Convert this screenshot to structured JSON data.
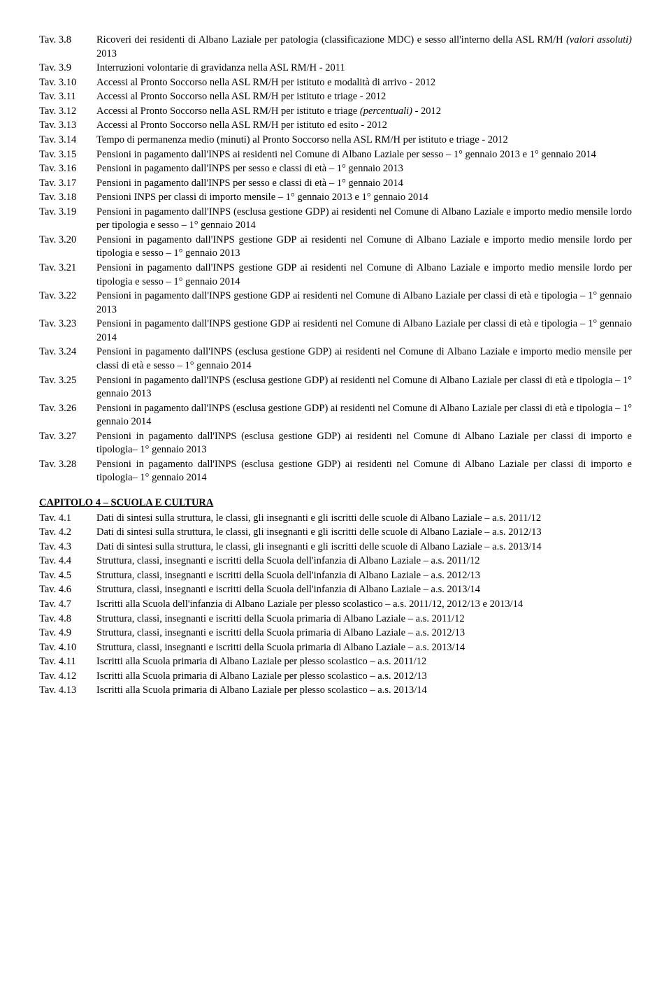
{
  "section1": {
    "entries": [
      {
        "label": "Tav. 3.8",
        "desc": "Ricoveri dei residenti di Albano Laziale per patologia (classificazione MDC) e sesso all'interno della ASL RM/H <i>(valori assoluti)</i> 2013"
      },
      {
        "label": "Tav. 3.9",
        "desc": "Interruzioni volontarie di gravidanza nella ASL RM/H - 2011"
      },
      {
        "label": "Tav. 3.10",
        "desc": "Accessi al Pronto Soccorso nella ASL RM/H per istituto e modalità di arrivo - 2012"
      },
      {
        "label": "Tav. 3.11",
        "desc": "Accessi al Pronto Soccorso nella ASL RM/H per istituto e triage - 2012"
      },
      {
        "label": "Tav. 3.12",
        "desc": "Accessi al Pronto Soccorso nella ASL RM/H per istituto e triage <i>(percentuali)</i> - 2012"
      },
      {
        "label": "Tav. 3.13",
        "desc": "Accessi al Pronto Soccorso nella ASL RM/H per istituto ed esito - 2012"
      },
      {
        "label": "Tav. 3.14",
        "desc": "Tempo di permanenza medio (minuti) al Pronto Soccorso nella ASL RM/H per istituto e triage - 2012"
      },
      {
        "label": "Tav. 3.15",
        "desc": "Pensioni in pagamento dall'INPS ai residenti nel Comune di Albano Laziale per sesso – 1° gennaio 2013 e 1° gennaio 2014"
      },
      {
        "label": "Tav. 3.16",
        "desc": "Pensioni in pagamento dall'INPS per sesso e classi di età – 1° gennaio 2013"
      },
      {
        "label": "Tav. 3.17",
        "desc": "Pensioni in pagamento dall'INPS per sesso e classi di età – 1° gennaio 2014"
      },
      {
        "label": "Tav. 3.18",
        "desc": "Pensioni INPS per classi di importo mensile – 1° gennaio 2013 e 1° gennaio 2014"
      },
      {
        "label": "Tav. 3.19",
        "desc": "Pensioni in pagamento dall'INPS (esclusa gestione GDP) ai residenti nel Comune di Albano Laziale e importo medio mensile lordo per tipologia e sesso – 1° gennaio 2014"
      },
      {
        "label": "Tav. 3.20",
        "desc": "Pensioni in pagamento dall'INPS gestione GDP ai residenti nel Comune di Albano Laziale e importo medio mensile lordo per tipologia e sesso – 1° gennaio 2013"
      },
      {
        "label": "Tav. 3.21",
        "desc": "Pensioni in pagamento dall'INPS gestione GDP ai residenti nel Comune di Albano Laziale e importo medio mensile lordo per tipologia e sesso – 1° gennaio 2014"
      },
      {
        "label": "Tav. 3.22",
        "desc": "Pensioni in pagamento dall'INPS gestione GDP ai residenti nel Comune di Albano Laziale per classi di età e tipologia – 1° gennaio 2013"
      },
      {
        "label": "Tav. 3.23",
        "desc": "Pensioni in pagamento dall'INPS gestione GDP ai residenti nel Comune di Albano Laziale per classi di età e tipologia – 1° gennaio 2014"
      },
      {
        "label": "Tav. 3.24",
        "desc": "Pensioni in pagamento dall'INPS (esclusa gestione GDP) ai residenti nel Comune di Albano Laziale e importo medio mensile per classi di età e sesso – 1° gennaio 2014"
      },
      {
        "label": "Tav. 3.25",
        "desc": "Pensioni in pagamento dall'INPS (esclusa gestione GDP) ai residenti nel Comune di Albano Laziale per classi di età e tipologia – 1° gennaio 2013"
      },
      {
        "label": "Tav. 3.26",
        "desc": "Pensioni in pagamento dall'INPS (esclusa gestione GDP) ai residenti nel Comune di Albano Laziale per classi di età e tipologia – 1° gennaio 2014"
      },
      {
        "label": "Tav. 3.27",
        "desc": "Pensioni in pagamento dall'INPS (esclusa gestione GDP)  ai residenti nel Comune di Albano Laziale per classi di importo e tipologia– 1° gennaio 2013"
      },
      {
        "label": "Tav. 3.28",
        "desc": "Pensioni in pagamento dall'INPS (esclusa gestione GDP)  ai residenti nel Comune di Albano Laziale per classi di importo e tipologia– 1° gennaio 2014"
      }
    ]
  },
  "chapter4": {
    "title": "CAPITOLO 4 – SCUOLA E CULTURA",
    "entries": [
      {
        "label": "Tav. 4.1",
        "desc": "Dati di sintesi sulla struttura, le classi, gli insegnanti e gli iscritti delle scuole di Albano Laziale – a.s. 2011/12"
      },
      {
        "label": "Tav. 4.2",
        "desc": "Dati di sintesi sulla struttura, le classi, gli insegnanti e gli iscritti delle scuole di Albano Laziale – a.s. 2012/13"
      },
      {
        "label": "Tav. 4.3",
        "desc": "Dati di sintesi sulla struttura, le classi, gli insegnanti e gli iscritti delle scuole di Albano Laziale – a.s. 2013/14"
      },
      {
        "label": "Tav. 4.4",
        "desc": "Struttura, classi, insegnanti e iscritti della Scuola dell'infanzia di Albano Laziale – a.s. 2011/12"
      },
      {
        "label": "Tav. 4.5",
        "desc": "Struttura, classi, insegnanti e iscritti della Scuola dell'infanzia di Albano Laziale – a.s. 2012/13"
      },
      {
        "label": "Tav. 4.6",
        "desc": "Struttura, classi, insegnanti e iscritti della Scuola dell'infanzia di Albano Laziale – a.s. 2013/14"
      },
      {
        "label": "Tav. 4.7",
        "desc": "Iscritti alla Scuola dell'infanzia di Albano Laziale per plesso scolastico – a.s. 2011/12, 2012/13 e 2013/14"
      },
      {
        "label": "Tav. 4.8",
        "desc": "Struttura, classi, insegnanti e iscritti della Scuola primaria di Albano Laziale – a.s. 2011/12"
      },
      {
        "label": "Tav. 4.9",
        "desc": "Struttura, classi, insegnanti e iscritti della Scuola primaria di Albano Laziale – a.s. 2012/13"
      },
      {
        "label": "Tav. 4.10",
        "desc": "Struttura, classi, insegnanti e iscritti della Scuola primaria di Albano Laziale – a.s. 2013/14"
      },
      {
        "label": "Tav. 4.11",
        "desc": "Iscritti alla Scuola primaria di Albano Laziale per plesso scolastico – a.s. 2011/12"
      },
      {
        "label": "Tav. 4.12",
        "desc": "Iscritti alla Scuola primaria di Albano Laziale per plesso scolastico – a.s. 2012/13"
      },
      {
        "label": "Tav. 4.13",
        "desc": "Iscritti alla Scuola primaria di Albano Laziale per plesso scolastico – a.s. 2013/14"
      }
    ]
  }
}
